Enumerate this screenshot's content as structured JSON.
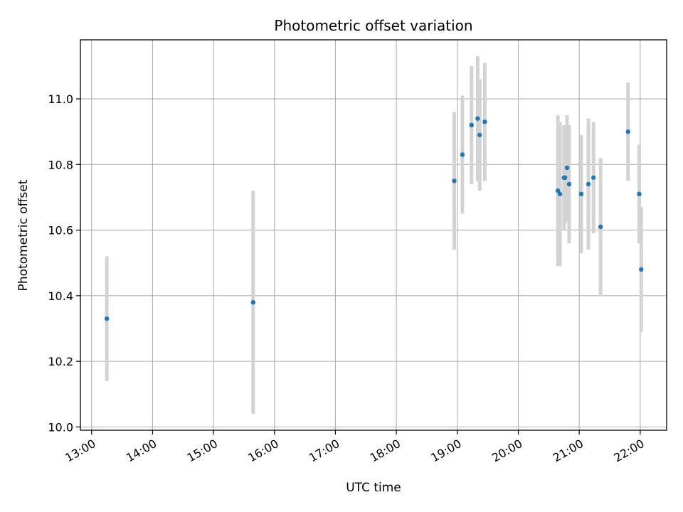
{
  "chart_data": {
    "type": "scatter",
    "title": "Photometric offset variation",
    "xlabel": "UTC time",
    "ylabel": "Photometric offset",
    "x_tick_labels": [
      "13:00",
      "14:00",
      "15:00",
      "16:00",
      "17:00",
      "18:00",
      "19:00",
      "20:00",
      "21:00",
      "22:00"
    ],
    "y_tick_labels": [
      "10.0",
      "10.2",
      "10.4",
      "10.6",
      "10.8",
      "11.0"
    ],
    "y_ticks": [
      10.0,
      10.2,
      10.4,
      10.6,
      10.8,
      11.0
    ],
    "xlim": [
      "12:49",
      "22:26"
    ],
    "ylim": [
      9.99,
      11.18
    ],
    "grid": true,
    "marker_color": "#1f77b4",
    "errorbar_color": "#d3d3d3",
    "points": [
      {
        "x": "13:15",
        "y": 10.33,
        "err": 0.19
      },
      {
        "x": "15:39",
        "y": 10.38,
        "err": 0.34
      },
      {
        "x": "18:57",
        "y": 10.75,
        "err": 0.21
      },
      {
        "x": "19:05",
        "y": 10.83,
        "err": 0.18
      },
      {
        "x": "19:14",
        "y": 10.92,
        "err": 0.18
      },
      {
        "x": "19:20",
        "y": 10.94,
        "err": 0.19
      },
      {
        "x": "19:22",
        "y": 10.89,
        "err": 0.17
      },
      {
        "x": "19:27",
        "y": 10.93,
        "err": 0.18
      },
      {
        "x": "20:39",
        "y": 10.72,
        "err": 0.23
      },
      {
        "x": "20:41",
        "y": 10.71,
        "err": 0.22
      },
      {
        "x": "20:45",
        "y": 10.76,
        "err": 0.16
      },
      {
        "x": "20:46",
        "y": 10.76,
        "err": 0.14
      },
      {
        "x": "20:48",
        "y": 10.79,
        "err": 0.16
      },
      {
        "x": "20:50",
        "y": 10.74,
        "err": 0.18
      },
      {
        "x": "21:02",
        "y": 10.71,
        "err": 0.18
      },
      {
        "x": "21:09",
        "y": 10.74,
        "err": 0.2
      },
      {
        "x": "21:14",
        "y": 10.76,
        "err": 0.17
      },
      {
        "x": "21:21",
        "y": 10.61,
        "err": 0.21
      },
      {
        "x": "21:48",
        "y": 10.9,
        "err": 0.15
      },
      {
        "x": "21:59",
        "y": 10.71,
        "err": 0.15
      },
      {
        "x": "22:01",
        "y": 10.48,
        "err": 0.19
      }
    ]
  }
}
